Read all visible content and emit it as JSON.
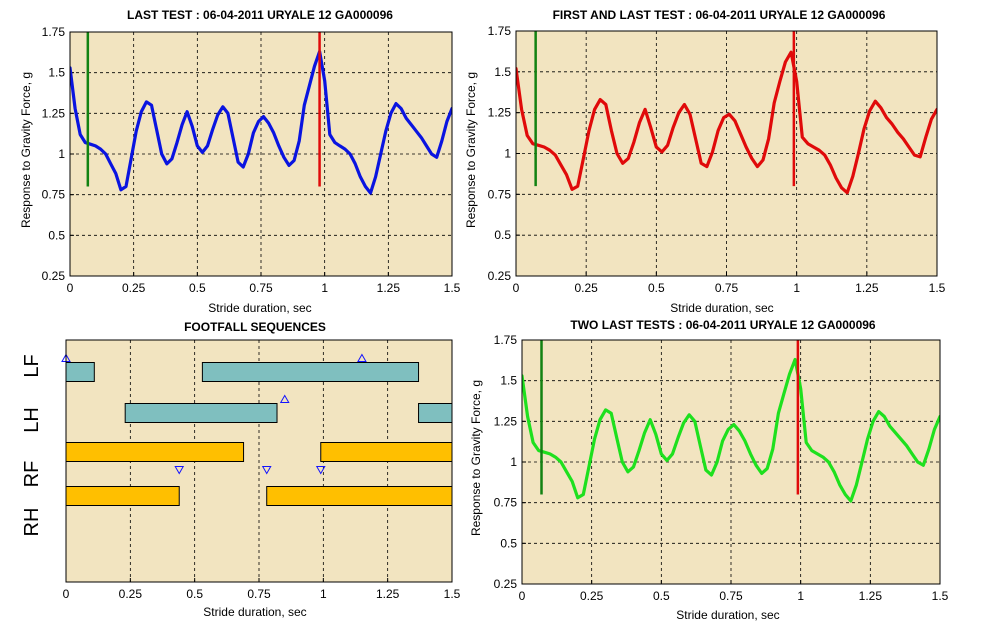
{
  "chart_data": [
    {
      "type": "line",
      "title": "LAST TEST : 06-04-2011 URYALE 12 GA000096",
      "xlabel": "Stride duration, sec",
      "ylabel": "Response to Gravity Force, g",
      "xlim": [
        0,
        1.5
      ],
      "ylim": [
        0.25,
        1.75
      ],
      "xticks": [
        "0",
        "0.25",
        "0.5",
        "0.75",
        "1",
        "1.25",
        "1.5"
      ],
      "yticks": [
        "0.25",
        "0.5",
        "0.75",
        "1",
        "1.25",
        "1.5",
        "1.75"
      ],
      "grid": true,
      "series": [
        {
          "color": "#0a14e0",
          "x": [
            0,
            0.02,
            0.04,
            0.06,
            0.08,
            0.1,
            0.12,
            0.14,
            0.16,
            0.18,
            0.2,
            0.22,
            0.24,
            0.26,
            0.28,
            0.3,
            0.32,
            0.34,
            0.36,
            0.38,
            0.4,
            0.42,
            0.44,
            0.46,
            0.48,
            0.5,
            0.52,
            0.54,
            0.56,
            0.58,
            0.6,
            0.62,
            0.64,
            0.66,
            0.68,
            0.7,
            0.72,
            0.74,
            0.76,
            0.78,
            0.8,
            0.82,
            0.84,
            0.86,
            0.88,
            0.9,
            0.92,
            0.94,
            0.96,
            0.98,
            1.0,
            1.02,
            1.04,
            1.06,
            1.08,
            1.1,
            1.12,
            1.14,
            1.16,
            1.18,
            1.2,
            1.22,
            1.24,
            1.26,
            1.28,
            1.3,
            1.32,
            1.34,
            1.36,
            1.38,
            1.4,
            1.42,
            1.44,
            1.46,
            1.48,
            1.5
          ],
          "y": [
            1.53,
            1.28,
            1.12,
            1.07,
            1.06,
            1.05,
            1.03,
            1.0,
            0.94,
            0.88,
            0.78,
            0.8,
            0.97,
            1.14,
            1.26,
            1.32,
            1.3,
            1.15,
            1.0,
            0.94,
            0.97,
            1.07,
            1.18,
            1.26,
            1.17,
            1.05,
            1.01,
            1.05,
            1.15,
            1.24,
            1.29,
            1.25,
            1.1,
            0.95,
            0.92,
            1.0,
            1.13,
            1.2,
            1.23,
            1.19,
            1.13,
            1.05,
            0.98,
            0.93,
            0.96,
            1.08,
            1.3,
            1.42,
            1.54,
            1.63,
            1.45,
            1.12,
            1.07,
            1.05,
            1.03,
            1.0,
            0.94,
            0.86,
            0.8,
            0.76,
            0.86,
            1.0,
            1.14,
            1.25,
            1.31,
            1.28,
            1.22,
            1.18,
            1.14,
            1.1,
            1.05,
            1.0,
            0.98,
            1.08,
            1.2,
            1.28
          ]
        }
      ],
      "vlines": [
        {
          "x": 0.07,
          "ymin": 0.8,
          "ymax": 1.75,
          "color": "#128212"
        },
        {
          "x": 0.98,
          "ymin": 0.8,
          "ymax": 1.75,
          "color": "#e00a0a"
        }
      ]
    },
    {
      "type": "line",
      "title": "FIRST AND LAST TEST : 06-04-2011 URYALE 12 GA000096",
      "xlabel": "Stride duration, sec",
      "ylabel": "Response to Gravity Force, g",
      "xlim": [
        0,
        1.5
      ],
      "ylim": [
        0.25,
        1.75
      ],
      "xticks": [
        "0",
        "0.25",
        "0.5",
        "0.75",
        "1",
        "1.25",
        "1.5"
      ],
      "yticks": [
        "0.25",
        "0.5",
        "0.75",
        "1",
        "1.25",
        "1.5",
        "1.75"
      ],
      "grid": true,
      "series": [
        {
          "color": "#e00a0a",
          "x": [
            0,
            0.02,
            0.04,
            0.06,
            0.08,
            0.1,
            0.12,
            0.14,
            0.16,
            0.18,
            0.2,
            0.22,
            0.24,
            0.26,
            0.28,
            0.3,
            0.32,
            0.34,
            0.36,
            0.38,
            0.4,
            0.42,
            0.44,
            0.46,
            0.48,
            0.5,
            0.52,
            0.54,
            0.56,
            0.58,
            0.6,
            0.62,
            0.64,
            0.66,
            0.68,
            0.7,
            0.72,
            0.74,
            0.76,
            0.78,
            0.8,
            0.82,
            0.84,
            0.86,
            0.88,
            0.9,
            0.92,
            0.94,
            0.96,
            0.98,
            1.0,
            1.02,
            1.04,
            1.06,
            1.08,
            1.1,
            1.12,
            1.14,
            1.16,
            1.18,
            1.2,
            1.22,
            1.24,
            1.26,
            1.28,
            1.3,
            1.32,
            1.34,
            1.36,
            1.38,
            1.4,
            1.42,
            1.44,
            1.46,
            1.48,
            1.5
          ],
          "y": [
            1.52,
            1.27,
            1.11,
            1.06,
            1.05,
            1.04,
            1.02,
            0.99,
            0.93,
            0.87,
            0.78,
            0.8,
            0.97,
            1.14,
            1.27,
            1.33,
            1.3,
            1.14,
            1.0,
            0.94,
            0.97,
            1.07,
            1.19,
            1.27,
            1.16,
            1.04,
            1.01,
            1.05,
            1.16,
            1.25,
            1.3,
            1.24,
            1.09,
            0.94,
            0.92,
            1.01,
            1.14,
            1.22,
            1.24,
            1.2,
            1.12,
            1.04,
            0.97,
            0.92,
            0.96,
            1.09,
            1.31,
            1.44,
            1.56,
            1.62,
            1.44,
            1.1,
            1.06,
            1.04,
            1.02,
            0.99,
            0.93,
            0.85,
            0.79,
            0.76,
            0.86,
            1.0,
            1.15,
            1.26,
            1.32,
            1.28,
            1.22,
            1.18,
            1.13,
            1.09,
            1.04,
            0.99,
            0.98,
            1.1,
            1.21,
            1.27
          ]
        }
      ],
      "vlines": [
        {
          "x": 0.07,
          "ymin": 0.8,
          "ymax": 1.75,
          "color": "#128212"
        },
        {
          "x": 0.99,
          "ymin": 0.8,
          "ymax": 1.75,
          "color": "#e00a0a"
        }
      ]
    },
    {
      "type": "gantt",
      "title": "FOOTFALL SEQUENCES",
      "xlabel": "Stride duration, sec",
      "xlim": [
        0,
        1.5
      ],
      "xticks": [
        "0",
        "0.25",
        "0.5",
        "0.75",
        "1",
        "1.25",
        "1.5"
      ],
      "grid": true,
      "rows": [
        {
          "label": "LF",
          "color": "#7fbfbf",
          "bars": [
            [
              0,
              0.11
            ],
            [
              0.53,
              1.37
            ]
          ],
          "markers": [
            {
              "x": 1.15,
              "dir": "up"
            },
            {
              "x": 0.0,
              "dir": "up"
            }
          ]
        },
        {
          "label": "LH",
          "color": "#7fbfbf",
          "bars": [
            [
              0.23,
              0.82
            ],
            [
              1.37,
              1.5
            ]
          ],
          "markers": [
            {
              "x": 0.85,
              "dir": "up"
            }
          ]
        },
        {
          "label": "RF",
          "color": "#ffbf00",
          "bars": [
            [
              0,
              0.69
            ],
            [
              0.99,
              1.5
            ]
          ],
          "markers": [
            {
              "x": 0.44,
              "dir": "down"
            },
            {
              "x": 0.78,
              "dir": "down"
            },
            {
              "x": 0.99,
              "dir": "down"
            }
          ]
        },
        {
          "label": "RH",
          "color": "#ffbf00",
          "bars": [
            [
              0,
              0.44
            ],
            [
              0.78,
              1.5
            ]
          ],
          "markers": []
        }
      ]
    },
    {
      "type": "line",
      "title": "TWO LAST TESTS : 06-04-2011 URYALE 12 GA000096",
      "xlabel": "Stride duration, sec",
      "ylabel": "Response to Gravity Force, g",
      "xlim": [
        0,
        1.5
      ],
      "ylim": [
        0.25,
        1.75
      ],
      "xticks": [
        "0",
        "0.25",
        "0.5",
        "0.75",
        "1",
        "1.25",
        "1.5"
      ],
      "yticks": [
        "0.25",
        "0.5",
        "0.75",
        "1",
        "1.25",
        "1.5",
        "1.75"
      ],
      "grid": true,
      "series": [
        {
          "color": "#1ee01e",
          "x": [
            0,
            0.02,
            0.04,
            0.06,
            0.08,
            0.1,
            0.12,
            0.14,
            0.16,
            0.18,
            0.2,
            0.22,
            0.24,
            0.26,
            0.28,
            0.3,
            0.32,
            0.34,
            0.36,
            0.38,
            0.4,
            0.42,
            0.44,
            0.46,
            0.48,
            0.5,
            0.52,
            0.54,
            0.56,
            0.58,
            0.6,
            0.62,
            0.64,
            0.66,
            0.68,
            0.7,
            0.72,
            0.74,
            0.76,
            0.78,
            0.8,
            0.82,
            0.84,
            0.86,
            0.88,
            0.9,
            0.92,
            0.94,
            0.96,
            0.98,
            1.0,
            1.02,
            1.04,
            1.06,
            1.08,
            1.1,
            1.12,
            1.14,
            1.16,
            1.18,
            1.2,
            1.22,
            1.24,
            1.26,
            1.28,
            1.3,
            1.32,
            1.34,
            1.36,
            1.38,
            1.4,
            1.42,
            1.44,
            1.46,
            1.48,
            1.5
          ],
          "y": [
            1.53,
            1.28,
            1.12,
            1.07,
            1.06,
            1.05,
            1.03,
            1.0,
            0.94,
            0.88,
            0.78,
            0.8,
            0.97,
            1.14,
            1.26,
            1.32,
            1.3,
            1.15,
            1.0,
            0.94,
            0.97,
            1.07,
            1.18,
            1.26,
            1.17,
            1.05,
            1.01,
            1.05,
            1.15,
            1.24,
            1.29,
            1.25,
            1.1,
            0.95,
            0.92,
            1.0,
            1.13,
            1.2,
            1.23,
            1.19,
            1.13,
            1.05,
            0.98,
            0.93,
            0.96,
            1.08,
            1.3,
            1.42,
            1.54,
            1.63,
            1.45,
            1.12,
            1.07,
            1.05,
            1.03,
            1.0,
            0.94,
            0.86,
            0.8,
            0.76,
            0.86,
            1.0,
            1.14,
            1.25,
            1.31,
            1.28,
            1.22,
            1.18,
            1.14,
            1.1,
            1.05,
            1.0,
            0.98,
            1.08,
            1.2,
            1.28
          ]
        }
      ],
      "vlines": [
        {
          "x": 0.07,
          "ymin": 0.8,
          "ymax": 1.75,
          "color": "#128212"
        },
        {
          "x": 0.99,
          "ymin": 0.8,
          "ymax": 1.75,
          "color": "#e00a0a"
        }
      ]
    }
  ],
  "colors": {
    "plot_background": "#f2e4c0",
    "figure_background": "#ffffff"
  }
}
